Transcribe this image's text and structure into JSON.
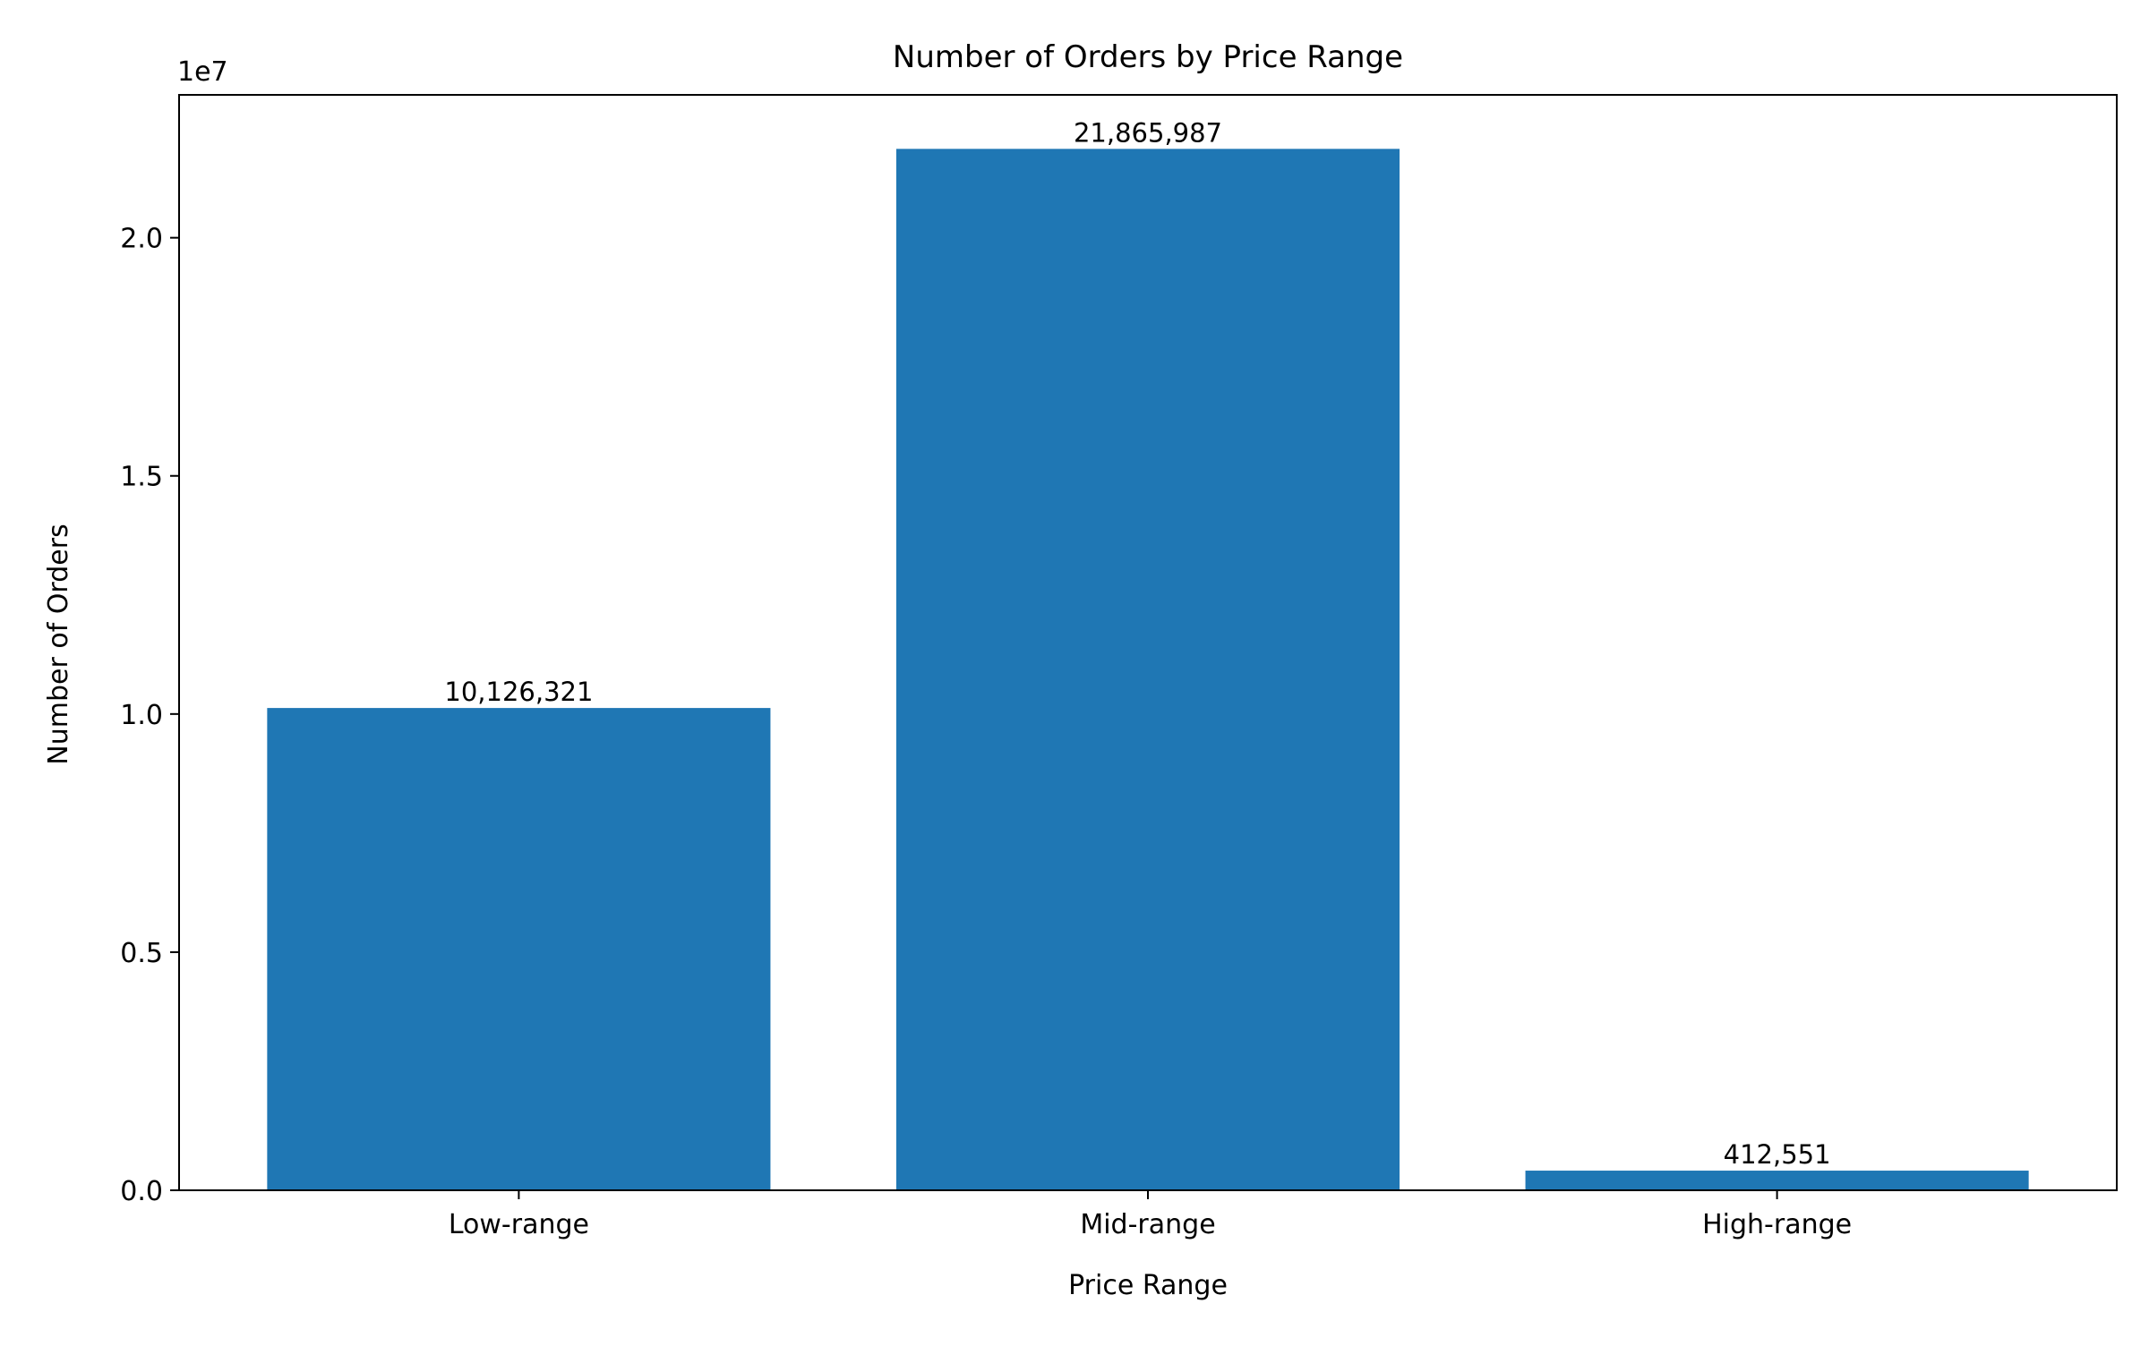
{
  "chart_data": {
    "type": "bar",
    "title": "Number of Orders by Price Range",
    "xlabel": "Price Range",
    "ylabel": "Number of Orders",
    "categories": [
      "Low-range",
      "Mid-range",
      "High-range"
    ],
    "values": [
      10126321,
      21865987,
      412551
    ],
    "value_labels": [
      "10,126,321",
      "21,865,987",
      "412,551"
    ],
    "ylim": [
      0,
      23000000
    ],
    "yticks": [
      0,
      5000000,
      10000000,
      15000000,
      20000000
    ],
    "ytick_labels": [
      "0.0",
      "0.5",
      "1.0",
      "1.5",
      "2.0"
    ],
    "y_offset_label": "1e7",
    "grid": false,
    "bar_color": "#1f77b4"
  }
}
